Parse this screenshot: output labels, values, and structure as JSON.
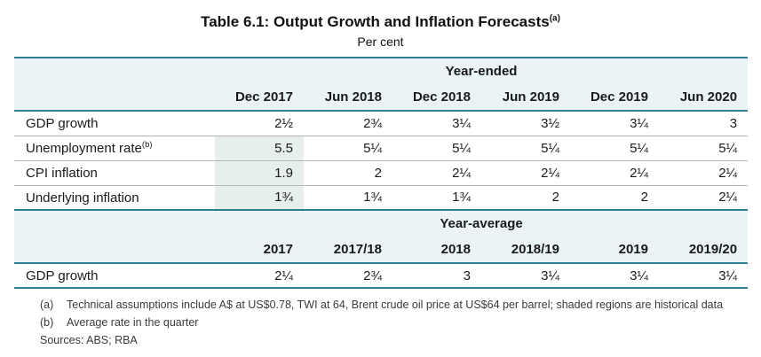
{
  "title": {
    "text": "Table 6.1: Output Growth and Inflation Forecasts",
    "superscript": "(a)"
  },
  "subtitle": "Per cent",
  "table": {
    "year_ended": {
      "section_label": "Year-ended",
      "columns": [
        "Dec 2017",
        "Jun 2018",
        "Dec 2018",
        "Jun 2019",
        "Dec 2019",
        "Jun 2020"
      ],
      "rows": [
        {
          "label": "GDP growth",
          "superscript": "",
          "values": [
            "2½",
            "2¾",
            "3¼",
            "3½",
            "3¼",
            "3"
          ],
          "shaded_columns": []
        },
        {
          "label": "Unemployment rate",
          "superscript": "(b)",
          "values": [
            "5.5",
            "5¼",
            "5¼",
            "5¼",
            "5¼",
            "5¼"
          ],
          "shaded_columns": [
            0
          ]
        },
        {
          "label": "CPI inflation",
          "superscript": "",
          "values": [
            "1.9",
            "2",
            "2¼",
            "2¼",
            "2¼",
            "2¼"
          ],
          "shaded_columns": [
            0
          ]
        },
        {
          "label": "Underlying inflation",
          "superscript": "",
          "values": [
            "1¾",
            "1¾",
            "1¾",
            "2",
            "2",
            "2¼"
          ],
          "shaded_columns": [
            0
          ]
        }
      ]
    },
    "year_average": {
      "section_label": "Year-average",
      "columns": [
        "2017",
        "2017/18",
        "2018",
        "2018/19",
        "2019",
        "2019/20"
      ],
      "rows": [
        {
          "label": "GDP growth",
          "superscript": "",
          "values": [
            "2¼",
            "2¾",
            "3",
            "3¼",
            "3¼",
            "3¼"
          ],
          "shaded_columns": []
        }
      ]
    }
  },
  "footnotes": [
    {
      "marker": "(a)",
      "text": "Technical assumptions include A$ at US$0.78, TWI at 64, Brent crude oil price at US$64 per barrel; shaded regions are historical data"
    },
    {
      "marker": "(b)",
      "text": "Average rate in the quarter"
    }
  ],
  "sources": "Sources: ABS; RBA",
  "colors": {
    "accent_teal": "#2e8093",
    "header_band_bg": "#eaf4f6",
    "shaded_cell_bg": "#e6eeee",
    "row_divider_gray": "#b5b5b5"
  }
}
